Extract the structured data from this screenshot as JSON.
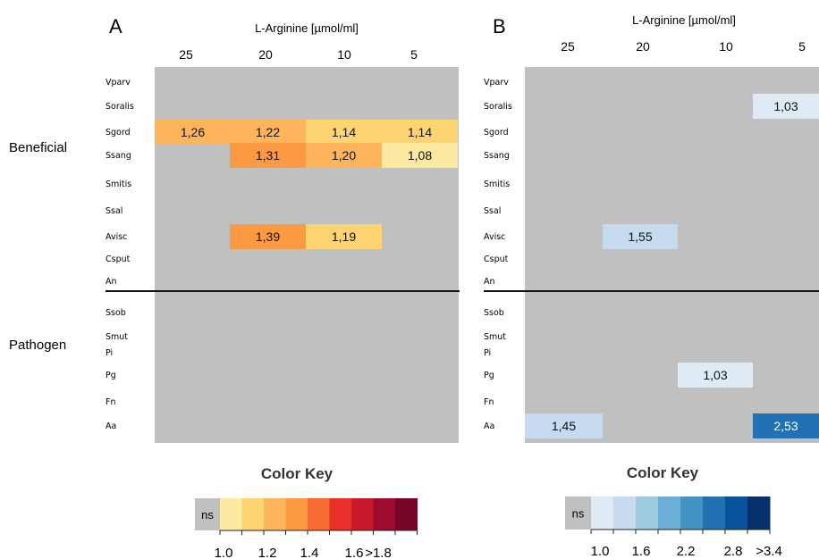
{
  "chart_data": [
    {
      "type": "heatmap",
      "panel": "A",
      "xlabel": "L-Arginine [µmol/ml]",
      "columns": [
        "25",
        "20",
        "10",
        "5"
      ],
      "rows": [
        "Vparv",
        "Soralis",
        "Sgord",
        "Ssang",
        "Smitis",
        "Ssal",
        "Avisc",
        "Csput",
        "An",
        "Ssob",
        "Smut",
        "Pi",
        "Pg",
        "Fn",
        "Aa"
      ],
      "groups": [
        {
          "label": "Beneficial",
          "rows": [
            "Vparv",
            "Soralis",
            "Sgord",
            "Ssang",
            "Smitis",
            "Ssal",
            "Avisc",
            "Csput",
            "An"
          ]
        },
        {
          "label": "Pathogen",
          "rows": [
            "Ssob",
            "Smut",
            "Pi",
            "Pg",
            "Fn",
            "Aa"
          ]
        }
      ],
      "cells": [
        {
          "row": "Sgord",
          "col": "25",
          "value": 1.26,
          "label": "1,26"
        },
        {
          "row": "Sgord",
          "col": "20",
          "value": 1.22,
          "label": "1,22"
        },
        {
          "row": "Sgord",
          "col": "10",
          "value": 1.14,
          "label": "1,14"
        },
        {
          "row": "Sgord",
          "col": "5",
          "value": 1.14,
          "label": "1,14"
        },
        {
          "row": "Ssang",
          "col": "20",
          "value": 1.31,
          "label": "1,31"
        },
        {
          "row": "Ssang",
          "col": "10",
          "value": 1.2,
          "label": "1,20"
        },
        {
          "row": "Ssang",
          "col": "5",
          "value": 1.08,
          "label": "1,08"
        },
        {
          "row": "Avisc",
          "col": "20",
          "value": 1.39,
          "label": "1,39"
        },
        {
          "row": "Avisc",
          "col": "10",
          "value": 1.19,
          "label": "1,19"
        }
      ],
      "ns_color": "#c0c0c0",
      "color_key": {
        "title": "Color Key",
        "ns_label": "ns",
        "colors": [
          "#fde9a2",
          "#fdd471",
          "#fdb45a",
          "#fc9a44",
          "#f86a34",
          "#e8302a",
          "#c81a2a",
          "#9e0b30",
          "#780426"
        ],
        "tick_labels": [
          "1.0",
          "1.2",
          "1.4",
          "1.6",
          ">1.8"
        ]
      }
    },
    {
      "type": "heatmap",
      "panel": "B",
      "xlabel": "L-Arginine [µmol/ml]",
      "columns": [
        "25",
        "20",
        "10",
        "5"
      ],
      "rows": [
        "Vparv",
        "Soralis",
        "Sgord",
        "Ssang",
        "Smitis",
        "Ssal",
        "Avisc",
        "Csput",
        "An",
        "Ssob",
        "Smut",
        "Pi",
        "Pg",
        "Fn",
        "Aa"
      ],
      "cells": [
        {
          "row": "Soralis",
          "col": "5",
          "value": 1.03,
          "label": "1,03"
        },
        {
          "row": "Avisc",
          "col": "20",
          "value": 1.55,
          "label": "1,55"
        },
        {
          "row": "Pg",
          "col": "10",
          "value": 1.03,
          "label": "1,03"
        },
        {
          "row": "Aa",
          "col": "25",
          "value": 1.45,
          "label": "1,45"
        },
        {
          "row": "Aa",
          "col": "5",
          "value": 2.53,
          "label": "2,53"
        }
      ],
      "ns_color": "#c0c0c0",
      "color_key": {
        "title": "Color Key",
        "ns_label": "ns",
        "colors": [
          "#deebf7",
          "#c6dbef",
          "#9ecae1",
          "#6baed6",
          "#4292c6",
          "#2171b5",
          "#08519c",
          "#08306b"
        ],
        "tick_labels": [
          "1.0",
          "1.6",
          "2.2",
          "2.8",
          ">3.4"
        ]
      }
    }
  ]
}
